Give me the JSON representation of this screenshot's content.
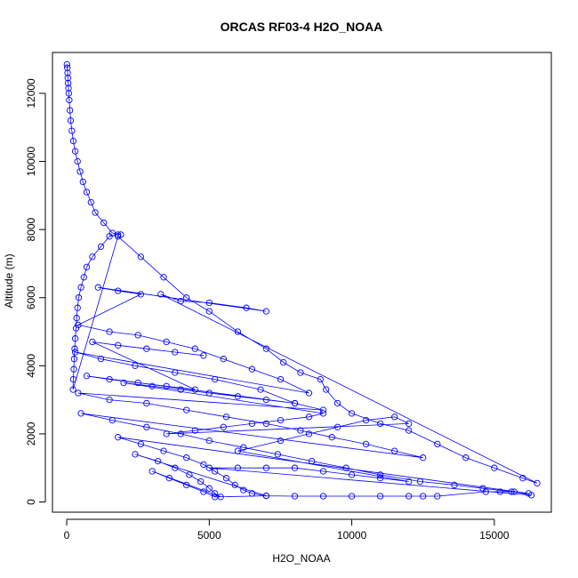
{
  "chart_data": {
    "type": "scatter",
    "title": "ORCAS RF03-4 H2O_NOAA",
    "xlabel": "H2O_NOAA",
    "ylabel": "Altitude (m)",
    "xlim": [
      -500,
      17000
    ],
    "ylim": [
      -300,
      13200
    ],
    "x_ticks": [
      0,
      5000,
      10000,
      15000
    ],
    "y_ticks": [
      0,
      2000,
      4000,
      6000,
      8000,
      10000,
      12000
    ],
    "x_tick_labels": [
      "0",
      "5000",
      "10000",
      "15000"
    ],
    "y_tick_labels": [
      "0",
      "2000",
      "4000",
      "6000",
      "8000",
      "10000",
      "12000"
    ],
    "grid": false,
    "series": [
      {
        "color": "#0000ff",
        "marker": "open-circle",
        "connect": true,
        "points": [
          [
            10,
            12850
          ],
          [
            20,
            12750
          ],
          [
            30,
            12600
          ],
          [
            40,
            12450
          ],
          [
            50,
            12300
          ],
          [
            60,
            12150
          ],
          [
            70,
            12000
          ],
          [
            90,
            11800
          ],
          [
            110,
            11500
          ],
          [
            140,
            11200
          ],
          [
            180,
            10900
          ],
          [
            230,
            10600
          ],
          [
            300,
            10300
          ],
          [
            380,
            10000
          ],
          [
            470,
            9700
          ],
          [
            570,
            9400
          ],
          [
            700,
            9100
          ],
          [
            850,
            8800
          ],
          [
            1000,
            8500
          ],
          [
            1300,
            8200
          ],
          [
            1600,
            7900
          ],
          [
            1900,
            7850
          ],
          [
            1800,
            7850
          ],
          [
            1500,
            7800
          ],
          [
            1200,
            7500
          ],
          [
            900,
            7200
          ],
          [
            700,
            6900
          ],
          [
            600,
            6600
          ],
          [
            500,
            6300
          ],
          [
            420,
            6000
          ],
          [
            380,
            5700
          ],
          [
            350,
            5400
          ],
          [
            330,
            5100
          ],
          [
            300,
            4800
          ],
          [
            280,
            4500
          ],
          [
            260,
            4200
          ],
          [
            250,
            3900
          ],
          [
            230,
            3600
          ],
          [
            220,
            3300
          ],
          [
            1800,
            7800
          ],
          [
            2600,
            7200
          ],
          [
            3400,
            6600
          ],
          [
            4200,
            6000
          ],
          [
            5000,
            5600
          ],
          [
            6000,
            5000
          ],
          [
            7000,
            4500
          ],
          [
            7600,
            4100
          ],
          [
            8200,
            3800
          ],
          [
            8900,
            3600
          ],
          [
            9100,
            3300
          ],
          [
            9500,
            2900
          ],
          [
            10000,
            2600
          ],
          [
            11000,
            2300
          ],
          [
            12000,
            2100
          ],
          [
            13000,
            1700
          ],
          [
            14000,
            1300
          ],
          [
            15000,
            1000
          ],
          [
            16000,
            700
          ],
          [
            16500,
            550
          ],
          [
            3300,
            6100
          ],
          [
            4000,
            5900
          ],
          [
            5000,
            5850
          ],
          [
            6300,
            5700
          ],
          [
            7000,
            5600
          ],
          [
            1100,
            6300
          ],
          [
            1800,
            6200
          ],
          [
            2600,
            6100
          ],
          [
            400,
            5200
          ],
          [
            1500,
            5000
          ],
          [
            2500,
            4900
          ],
          [
            3500,
            4700
          ],
          [
            4500,
            4500
          ],
          [
            5500,
            4200
          ],
          [
            6500,
            3900
          ],
          [
            7500,
            3600
          ],
          [
            8500,
            3200
          ],
          [
            300,
            4400
          ],
          [
            1200,
            4200
          ],
          [
            2400,
            4000
          ],
          [
            3800,
            3800
          ],
          [
            5200,
            3600
          ],
          [
            6800,
            3300
          ],
          [
            8000,
            2900
          ],
          [
            9000,
            2700
          ],
          [
            400,
            3200
          ],
          [
            1500,
            3000
          ],
          [
            2800,
            2900
          ],
          [
            4200,
            2700
          ],
          [
            5600,
            2500
          ],
          [
            7000,
            2300
          ],
          [
            8200,
            2100
          ],
          [
            9300,
            1900
          ],
          [
            10500,
            1700
          ],
          [
            11500,
            1500
          ],
          [
            12500,
            1300
          ],
          [
            500,
            2600
          ],
          [
            1600,
            2400
          ],
          [
            2800,
            2200
          ],
          [
            4000,
            2000
          ],
          [
            5000,
            1800
          ],
          [
            6200,
            1600
          ],
          [
            7400,
            1400
          ],
          [
            8600,
            1200
          ],
          [
            9800,
            1000
          ],
          [
            11000,
            800
          ],
          [
            12400,
            600
          ],
          [
            13600,
            500
          ],
          [
            14600,
            400
          ],
          [
            15600,
            300
          ],
          [
            16200,
            250
          ],
          [
            1800,
            1900
          ],
          [
            2600,
            1700
          ],
          [
            3400,
            1500
          ],
          [
            4200,
            1300
          ],
          [
            4800,
            1100
          ],
          [
            5200,
            900
          ],
          [
            5600,
            700
          ],
          [
            5900,
            500
          ],
          [
            6200,
            350
          ],
          [
            6500,
            250
          ],
          [
            7000,
            180
          ],
          [
            2400,
            1400
          ],
          [
            3200,
            1200
          ],
          [
            3800,
            1000
          ],
          [
            4300,
            800
          ],
          [
            4700,
            600
          ],
          [
            5000,
            400
          ],
          [
            5200,
            250
          ],
          [
            5400,
            150
          ],
          [
            3000,
            900
          ],
          [
            3600,
            700
          ],
          [
            4200,
            500
          ],
          [
            4800,
            300
          ],
          [
            5200,
            150
          ],
          [
            7000,
            180
          ],
          [
            8000,
            170
          ],
          [
            9000,
            170
          ],
          [
            10000,
            170
          ],
          [
            11000,
            170
          ],
          [
            12000,
            170
          ],
          [
            12500,
            170
          ],
          [
            13000,
            170
          ],
          [
            14700,
            300
          ],
          [
            15200,
            300
          ],
          [
            15700,
            300
          ],
          [
            16300,
            200
          ],
          [
            5000,
            1000
          ],
          [
            6000,
            1000
          ],
          [
            7000,
            1000
          ],
          [
            8000,
            1000
          ],
          [
            9000,
            900
          ],
          [
            10000,
            800
          ],
          [
            11000,
            700
          ],
          [
            12000,
            600
          ],
          [
            6000,
            1500
          ],
          [
            7500,
            1800
          ],
          [
            8500,
            2000
          ],
          [
            9500,
            2200
          ],
          [
            10500,
            2400
          ],
          [
            11500,
            2500
          ],
          [
            12000,
            2300
          ],
          [
            3500,
            2000
          ],
          [
            4500,
            2100
          ],
          [
            5500,
            2200
          ],
          [
            6500,
            2300
          ],
          [
            7500,
            2400
          ],
          [
            8500,
            2500
          ],
          [
            9000,
            2600
          ],
          [
            2000,
            3500
          ],
          [
            3000,
            3400
          ],
          [
            4000,
            3300
          ],
          [
            5000,
            3200
          ],
          [
            6000,
            3100
          ],
          [
            7000,
            3000
          ],
          [
            8000,
            2900
          ],
          [
            700,
            3700
          ],
          [
            1500,
            3600
          ],
          [
            2500,
            3500
          ],
          [
            3500,
            3400
          ],
          [
            4500,
            3300
          ],
          [
            900,
            4700
          ],
          [
            1800,
            4600
          ],
          [
            2800,
            4500
          ],
          [
            3800,
            4400
          ],
          [
            4800,
            4300
          ]
        ]
      }
    ]
  }
}
